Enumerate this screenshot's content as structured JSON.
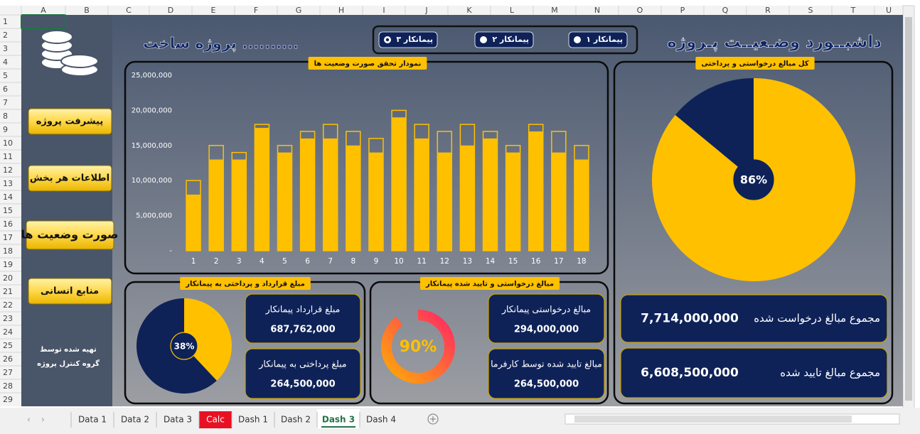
{
  "spreadsheet": {
    "columns": [
      "A",
      "B",
      "C",
      "D",
      "E",
      "F",
      "G",
      "H",
      "I",
      "J",
      "K",
      "L",
      "M",
      "N",
      "O",
      "P",
      "Q",
      "R",
      "S",
      "T",
      "U"
    ],
    "rows": [
      1,
      2,
      3,
      4,
      5,
      6,
      7,
      8,
      9,
      10,
      11,
      12,
      13,
      14,
      15,
      16,
      17,
      18,
      19,
      20,
      21,
      22,
      23,
      24,
      25,
      26,
      27,
      28,
      29
    ],
    "sheet_tabs": [
      {
        "label": "Data 1"
      },
      {
        "label": "Data 2"
      },
      {
        "label": "Data 3"
      },
      {
        "label": "Calc",
        "color": "#e81123"
      },
      {
        "label": "Dash 1"
      },
      {
        "label": "Dash 2"
      },
      {
        "label": "Dash 3",
        "active": true
      },
      {
        "label": "Dash 4"
      }
    ]
  },
  "header": {
    "title": "داشبــورد وضـعیــت پـروژه",
    "project": "پروژه ساخت ..........",
    "contractors": [
      "پیمانکار ۱",
      "پیمانکار ۲",
      "پیمانکار ۳"
    ],
    "selected_contractor": 2
  },
  "sidebar": {
    "buttons": [
      "پیشرفت پروژه",
      "اطلاعات هر بخش",
      "صورت وضعیت ها",
      "منابع انسانی"
    ],
    "active_button": 2,
    "credit": [
      "تهیه شده توسط",
      "گروه کنترل پروژه"
    ]
  },
  "cards": [
    {
      "label": "مبلغ قرارداد پیمانکار",
      "value": "687,762,000"
    },
    {
      "label": "مبلغ پرداختی به پیمانکار",
      "value": "264,500,000"
    },
    {
      "label": "مبالغ درخواستی پیمانکار",
      "value": "294,000,000"
    },
    {
      "label": "مبالغ تایید شده توسط کارفرما",
      "value": "264,500,000"
    },
    {
      "label": "مجموع مبالغ درخواست شده",
      "value": "7,714,000,000"
    },
    {
      "label": "مجموع مبالغ تایید شده",
      "value": "6,608,500,000"
    }
  ],
  "chart_data": [
    {
      "type": "bar",
      "title": "نمودار تحقق صورت وضعیت ها",
      "categories": [
        "1",
        "2",
        "3",
        "4",
        "5",
        "6",
        "7",
        "8",
        "9",
        "10",
        "11",
        "12",
        "13",
        "14",
        "15",
        "16",
        "17",
        "18"
      ],
      "series": [
        {
          "color": "#ffc000",
          "values": [
            10000000,
            15000000,
            14000000,
            18000000,
            15000000,
            17000000,
            18000000,
            17000000,
            16000000,
            20000000,
            18000000,
            17000000,
            18000000,
            17000000,
            15000000,
            18000000,
            17000000,
            15000000
          ]
        },
        {
          "color": "#ffc000",
          "values": [
            8000000,
            13000000,
            13000000,
            17500000,
            14000000,
            16000000,
            16000000,
            15000000,
            14000000,
            19000000,
            16000000,
            14000000,
            15000000,
            16000000,
            14000000,
            17000000,
            14000000,
            13000000
          ]
        }
      ],
      "ylim": [
        0,
        25000000
      ],
      "yticks": [
        {
          "value": 0,
          "label": "-"
        },
        {
          "value": 5000000,
          "label": "5,000,000"
        },
        {
          "value": 10000000,
          "label": "10,000,000"
        },
        {
          "value": 15000000,
          "label": "15,000,000"
        },
        {
          "value": 20000000,
          "label": "20,000,000"
        },
        {
          "value": 25000000,
          "label": "25,000,000"
        }
      ]
    },
    {
      "type": "pie",
      "title": "کل مبالغ درخواستی و پرداختی",
      "values": [
        86,
        14
      ],
      "value_labels": [
        "86%",
        null
      ],
      "colors": [
        "#ffc000",
        "#0e2258"
      ]
    },
    {
      "type": "pie",
      "title": "مبلغ قرارداد و پرداختی به پیمانکار",
      "values": [
        38,
        62
      ],
      "value_labels": [
        "38%",
        null
      ],
      "colors": [
        "#ffc000",
        "#0e2258"
      ]
    },
    {
      "type": "donut",
      "title": "مبالغ درخواستی و تایید شده پیمانکار",
      "values": [
        90,
        10
      ],
      "value_labels": [
        "90%",
        null
      ],
      "colors": [
        "#ff1f6b",
        "#ffb400"
      ]
    }
  ]
}
